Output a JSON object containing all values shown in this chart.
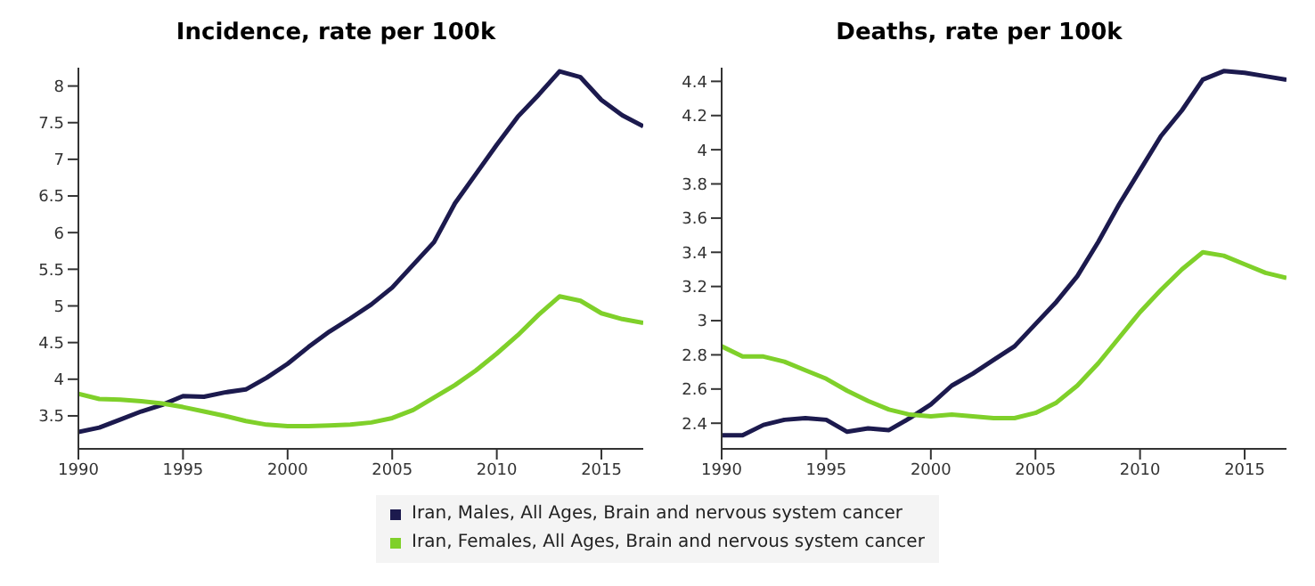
{
  "chart_data": [
    {
      "type": "line",
      "title": "Incidence, rate per 100k",
      "x": [
        1990,
        1991,
        1992,
        1993,
        1994,
        1995,
        1996,
        1997,
        1998,
        1999,
        2000,
        2001,
        2002,
        2003,
        2004,
        2005,
        2006,
        2007,
        2008,
        2009,
        2010,
        2011,
        2012,
        2013,
        2014,
        2015,
        2016,
        2017
      ],
      "xlim": [
        1990,
        2017
      ],
      "xticks": [
        1990,
        1995,
        2000,
        2005,
        2010,
        2015
      ],
      "ylim": [
        3.05,
        8.25
      ],
      "yticks": [
        3.5,
        4,
        4.5,
        5,
        5.5,
        6,
        6.5,
        7,
        7.5,
        8
      ],
      "grid": false,
      "legend": "bottom",
      "marker": "none",
      "series": [
        {
          "name": "Iran, Males, All Ages, Brain and nervous system cancer",
          "color": "#1c1a4e",
          "values": [
            3.28,
            3.34,
            3.45,
            3.56,
            3.65,
            3.77,
            3.76,
            3.82,
            3.86,
            4.02,
            4.21,
            4.44,
            4.65,
            4.83,
            5.02,
            5.25,
            5.56,
            5.87,
            6.4,
            6.8,
            7.2,
            7.58,
            7.88,
            8.2,
            8.12,
            7.81,
            7.6,
            7.45
          ]
        },
        {
          "name": "Iran, Females, All Ages, Brain and nervous system cancer",
          "color": "#7fd02a",
          "values": [
            3.8,
            3.73,
            3.72,
            3.7,
            3.67,
            3.62,
            3.56,
            3.5,
            3.43,
            3.38,
            3.36,
            3.36,
            3.37,
            3.38,
            3.41,
            3.47,
            3.58,
            3.75,
            3.92,
            4.12,
            4.35,
            4.6,
            4.88,
            5.13,
            5.07,
            4.9,
            4.82,
            4.77
          ]
        }
      ]
    },
    {
      "type": "line",
      "title": "Deaths, rate per 100k",
      "x": [
        1990,
        1991,
        1992,
        1993,
        1994,
        1995,
        1996,
        1997,
        1998,
        1999,
        2000,
        2001,
        2002,
        2003,
        2004,
        2005,
        2006,
        2007,
        2008,
        2009,
        2010,
        2011,
        2012,
        2013,
        2014,
        2015,
        2016,
        2017
      ],
      "xlim": [
        1990,
        2017
      ],
      "xticks": [
        1990,
        1995,
        2000,
        2005,
        2010,
        2015
      ],
      "ylim": [
        2.25,
        4.48
      ],
      "yticks": [
        2.4,
        2.6,
        2.8,
        3,
        3.2,
        3.4,
        3.6,
        3.8,
        4,
        4.2,
        4.4
      ],
      "grid": false,
      "marker": "none",
      "series": [
        {
          "color": "#1c1a4e",
          "values": [
            2.33,
            2.33,
            2.39,
            2.42,
            2.43,
            2.42,
            2.35,
            2.37,
            2.36,
            2.43,
            2.51,
            2.62,
            2.69,
            2.77,
            2.85,
            2.98,
            3.11,
            3.26,
            3.46,
            3.68,
            3.88,
            4.08,
            4.23,
            4.41,
            4.46,
            4.45,
            4.43,
            4.41
          ]
        },
        {
          "color": "#7fd02a",
          "values": [
            2.85,
            2.79,
            2.79,
            2.76,
            2.71,
            2.66,
            2.59,
            2.53,
            2.48,
            2.45,
            2.44,
            2.45,
            2.44,
            2.43,
            2.43,
            2.46,
            2.52,
            2.62,
            2.75,
            2.9,
            3.05,
            3.18,
            3.3,
            3.4,
            3.38,
            3.33,
            3.28,
            3.25
          ]
        }
      ]
    }
  ]
}
